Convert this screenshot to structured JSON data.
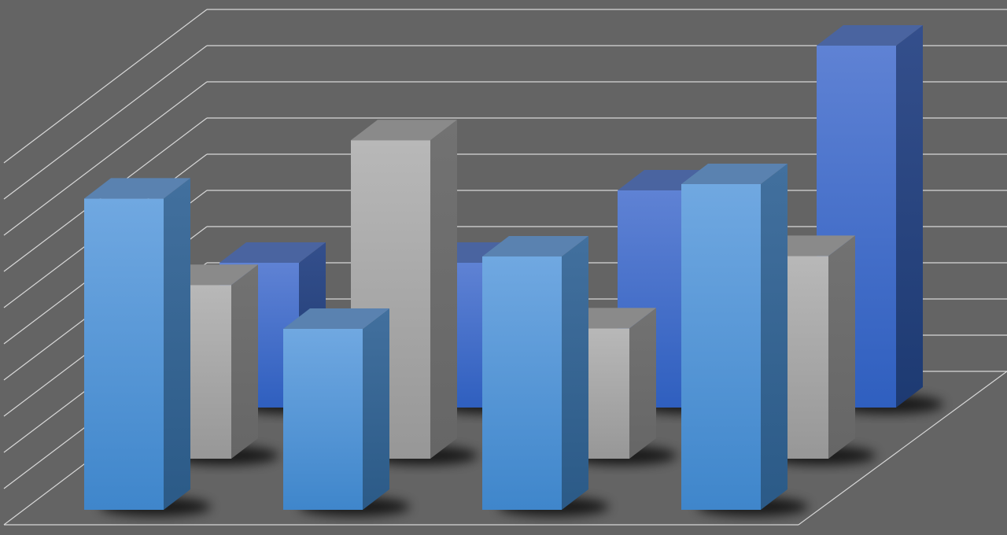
{
  "chart_data": {
    "type": "bar",
    "variant": "3d-clustered-depth",
    "title": "",
    "xlabel": "",
    "ylabel": "",
    "ylim": [
      0,
      10
    ],
    "grid": true,
    "legend": "none",
    "categories": [
      "",
      "",
      "",
      ""
    ],
    "series": [
      {
        "values": [
          4.0,
          4.0,
          6.0,
          10.0
        ],
        "color": "#3f6ccc",
        "depth": "back"
      },
      {
        "values": [
          4.8,
          8.8,
          3.6,
          5.6
        ],
        "color": "#a8a8a8",
        "depth": "middle"
      },
      {
        "values": [
          8.6,
          5.0,
          7.0,
          9.0
        ],
        "color": "#5a9ad9",
        "depth": "front"
      }
    ],
    "background": "#646464",
    "gridline_color": "#d8d8d8"
  }
}
